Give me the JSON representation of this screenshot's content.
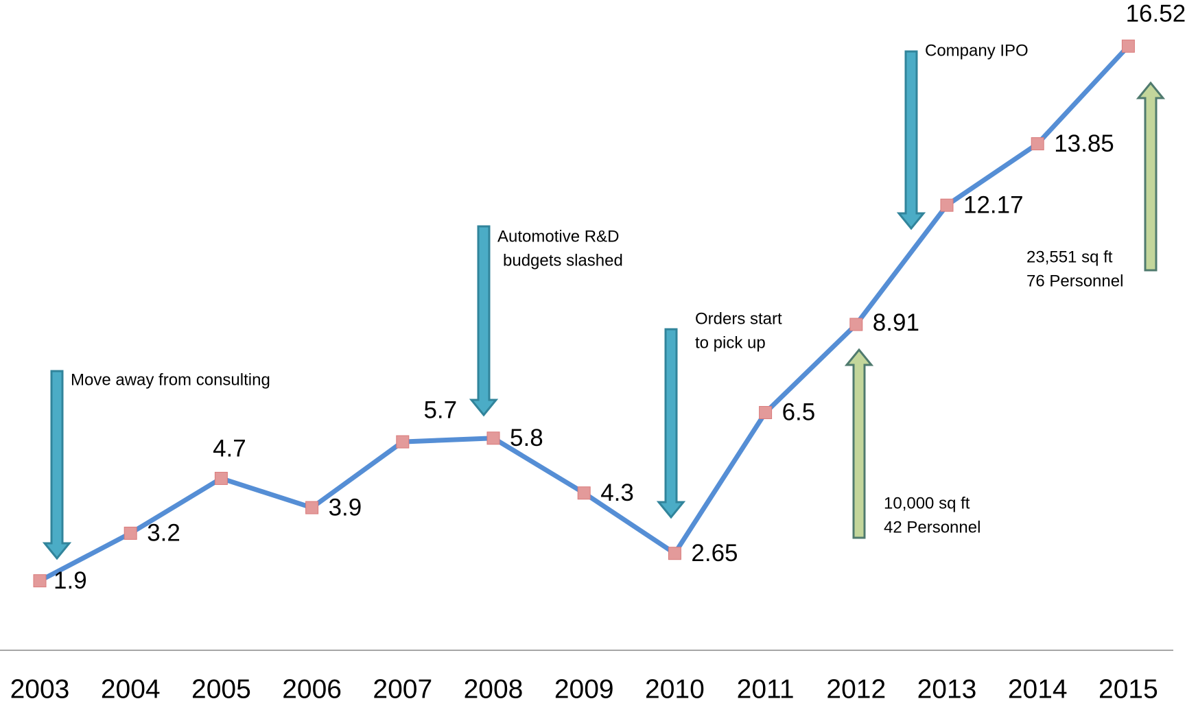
{
  "chart_data": {
    "type": "line",
    "categories": [
      "2003",
      "2004",
      "2005",
      "2006",
      "2007",
      "2008",
      "2009",
      "2010",
      "2011",
      "2012",
      "2013",
      "2014",
      "2015"
    ],
    "series": [
      {
        "color": "#558ed5",
        "marker_color": "#e39a9a",
        "values": [
          1.9,
          3.2,
          4.7,
          3.9,
          5.7,
          5.8,
          4.3,
          2.65,
          6.5,
          8.91,
          12.17,
          13.85,
          16.52
        ]
      }
    ],
    "ylim": [
      0,
      17.5
    ],
    "annotations": [
      {
        "lines": [
          "Move away from consulting"
        ],
        "arrow": "down"
      },
      {
        "lines": [
          "Automotive R&D",
          "budgets slashed"
        ],
        "arrow": "down"
      },
      {
        "lines": [
          "Orders start",
          "to pick up"
        ],
        "arrow": "down"
      },
      {
        "lines": [
          "Company IPO"
        ],
        "arrow": "down"
      },
      {
        "lines": [
          "10,000 sq ft",
          "42 Personnel"
        ],
        "arrow": "up"
      },
      {
        "lines": [
          "23,551 sq ft",
          "76 Personnel"
        ],
        "arrow": "up"
      }
    ]
  }
}
